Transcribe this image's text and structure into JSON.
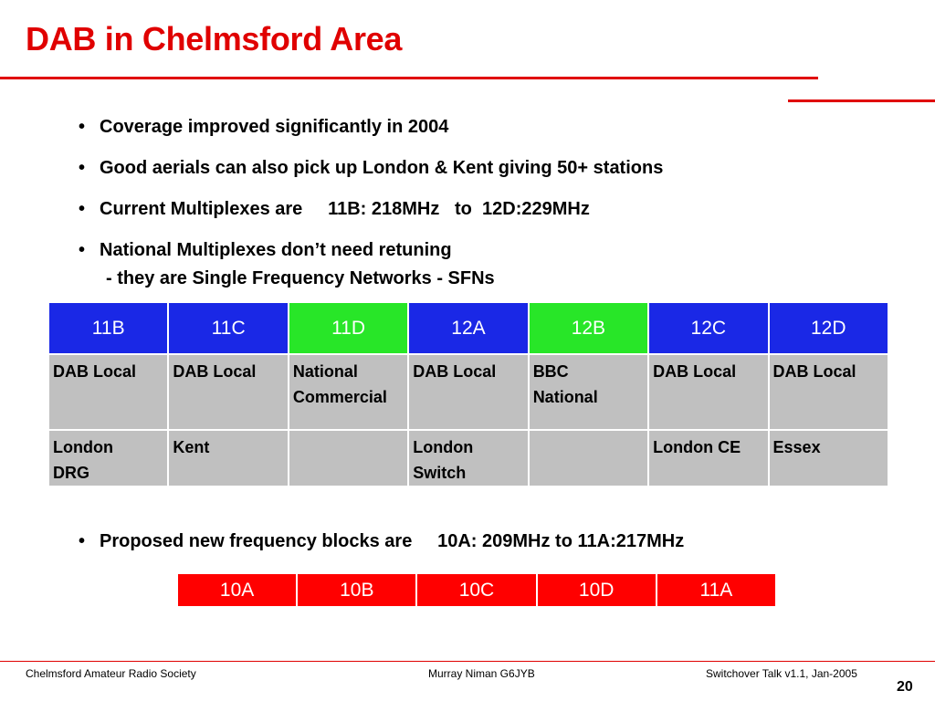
{
  "slide": {
    "title": "DAB in Chelmsford Area",
    "bullets": [
      "Coverage improved significantly in 2004",
      "Good aerials can also pick up London & Kent giving 50+ stations",
      "Current Multiplexes are     11B: 218MHz   to  12D:229MHz",
      "National Multiplexes don’t need retuning"
    ],
    "bullet_sub": "- they are Single Frequency Networks - SFNs",
    "bullet_glyph": "•",
    "proposed_bullet": "Proposed new frequency blocks are     10A: 209MHz to 11A:217MHz"
  },
  "multiplex_table": {
    "headers": [
      "11B",
      "11C",
      "11D",
      "12A",
      "12B",
      "12C",
      "12D"
    ],
    "row1": [
      "DAB Local",
      "DAB Local",
      "National\nCommercial",
      "DAB Local",
      "BBC\nNational",
      "DAB Local",
      "DAB Local"
    ],
    "row2": [
      "London\nDRG",
      "Kent",
      "",
      "London\nSwitch",
      "",
      "London CE",
      "Essex"
    ],
    "colors": {
      "local": "#1a28e6",
      "national": "#28e628",
      "cell_bg": "#c0c0c0"
    }
  },
  "proposed_table": {
    "headers": [
      "10A",
      "10B",
      "10C",
      "10D",
      "11A"
    ],
    "color": "#ff0000"
  },
  "footer": {
    "left": "Chelmsford Amateur Radio Society",
    "center": "Murray Niman G6JYB",
    "right": "Switchover Talk v1.1, Jan-2005",
    "page": "20"
  }
}
